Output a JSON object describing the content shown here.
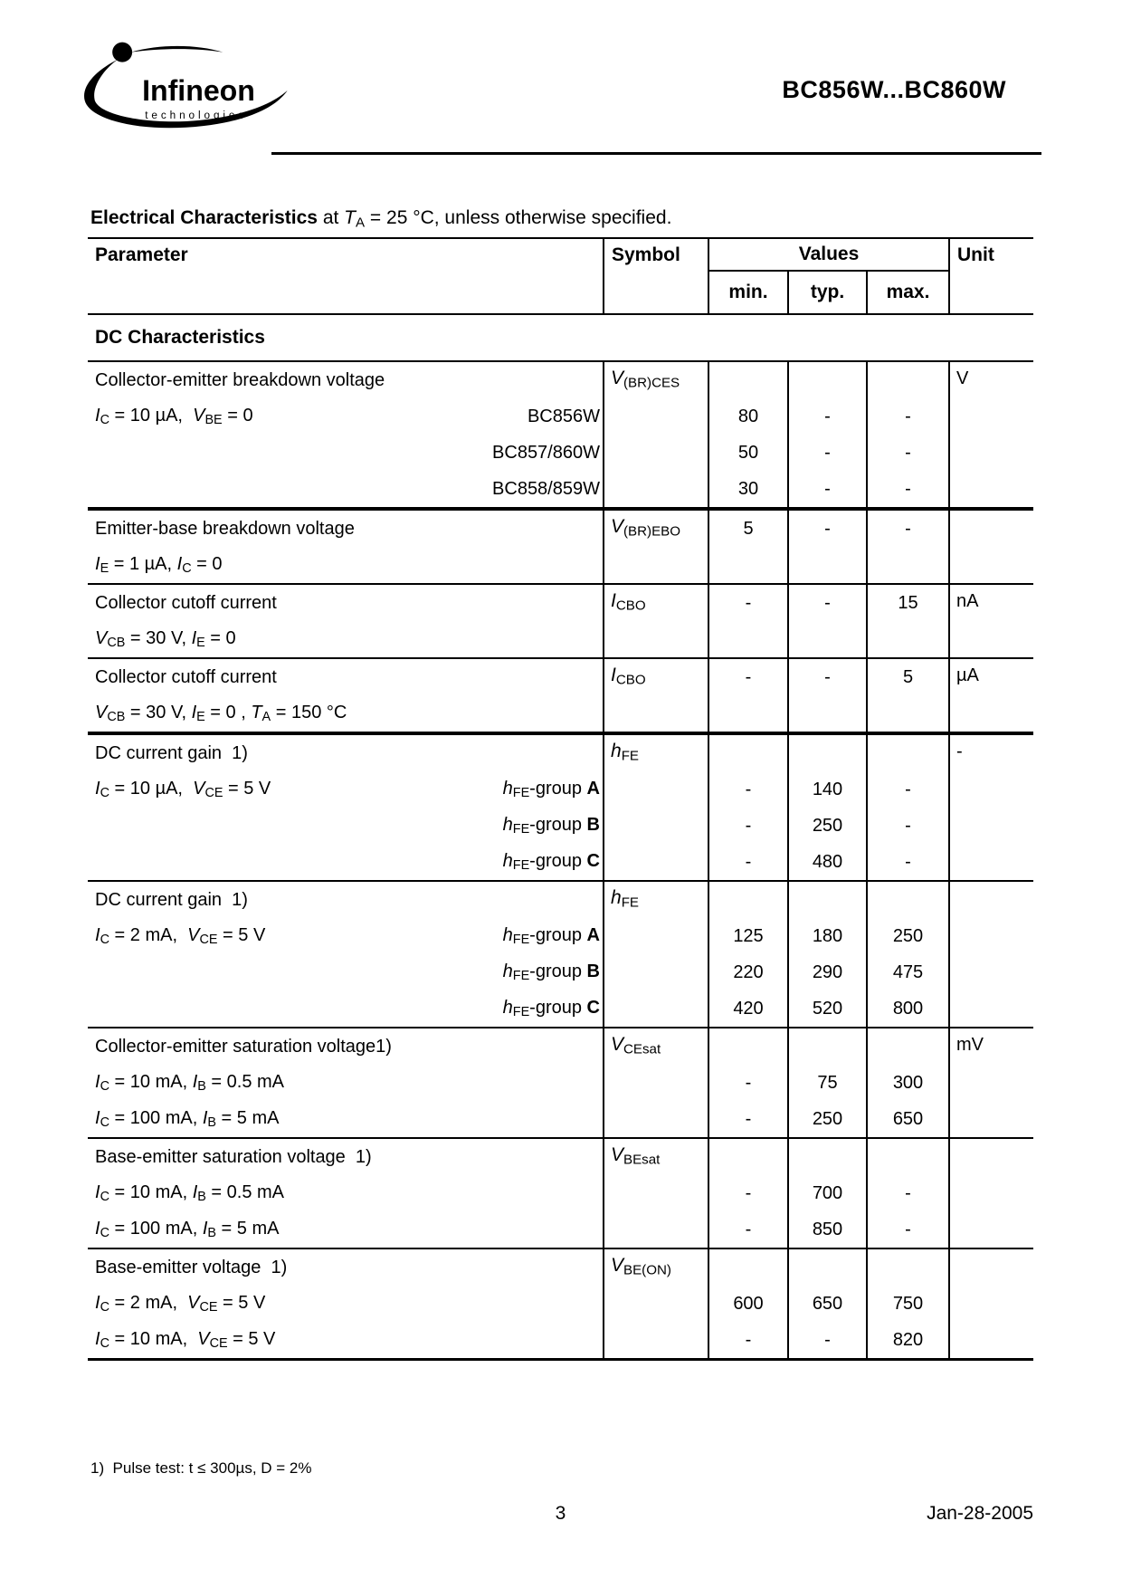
{
  "header": {
    "logo": {
      "brand": "Infineon",
      "sub": "technologies"
    },
    "doc_title": "BC856W...BC860W"
  },
  "intro": {
    "tokens": [
      {
        "t": "Electrical Characteristics",
        "b": true
      },
      {
        "t": " at "
      },
      {
        "t": "T",
        "i": true
      },
      {
        "t": "A",
        "s": true
      },
      {
        "t": " = 25 °C, unless otherwise specified."
      }
    ]
  },
  "table": {
    "columns": {
      "parameter": "Parameter",
      "symbol": "Symbol",
      "values": "Values",
      "unit": "Unit",
      "min": "min.",
      "typ": "typ.",
      "max": "max."
    },
    "section": "DC Characteristics",
    "blocks": [
      {
        "name": "collector-emitter-breakdown-voltage",
        "border_top": "none",
        "symbol": [
          {
            "t": "V",
            "i": true
          },
          {
            "t": "(BR)CES",
            "s": true
          }
        ],
        "unit": "V",
        "rows": [
          {
            "left": [
              {
                "t": "Collector-emitter breakdown voltage"
              }
            ],
            "min": "",
            "typ": "",
            "max": ""
          },
          {
            "left": [
              {
                "t": "I",
                "i": true
              },
              {
                "t": "C",
                "s": true
              },
              {
                "t": " = 10 µA,  "
              },
              {
                "t": "V",
                "i": true
              },
              {
                "t": "BE",
                "s": true
              },
              {
                "t": " = 0"
              }
            ],
            "right": [
              {
                "t": "BC856W"
              }
            ],
            "min": "80",
            "typ": "-",
            "max": "-"
          },
          {
            "right": [
              {
                "t": "BC857/860W"
              }
            ],
            "min": "50",
            "typ": "-",
            "max": "-"
          },
          {
            "right": [
              {
                "t": "BC858/859W"
              }
            ],
            "min": "30",
            "typ": "-",
            "max": "-"
          }
        ]
      },
      {
        "name": "emitter-base-breakdown-voltage",
        "border_top": "thick",
        "symbol": [
          {
            "t": "V",
            "i": true
          },
          {
            "t": "(BR)EBO",
            "s": true
          }
        ],
        "unit": "",
        "rows": [
          {
            "left": [
              {
                "t": "Emitter-base breakdown voltage"
              }
            ],
            "min": "5",
            "typ": "-",
            "max": "-"
          },
          {
            "left": [
              {
                "t": "I",
                "i": true
              },
              {
                "t": "E",
                "s": true
              },
              {
                "t": " = 1 µA, "
              },
              {
                "t": "I",
                "i": true
              },
              {
                "t": "C",
                "s": true
              },
              {
                "t": " = 0"
              }
            ],
            "min": "",
            "typ": "",
            "max": ""
          }
        ]
      },
      {
        "name": "collector-cutoff-current-25c",
        "border_top": "normal",
        "symbol": [
          {
            "t": "I",
            "i": true
          },
          {
            "t": "CBO",
            "s": true
          }
        ],
        "unit": "nA",
        "rows": [
          {
            "left": [
              {
                "t": "Collector cutoff current"
              }
            ],
            "min": "-",
            "typ": "-",
            "max": "15"
          },
          {
            "left": [
              {
                "t": "V",
                "i": true
              },
              {
                "t": "CB",
                "s": true
              },
              {
                "t": " = 30 V, "
              },
              {
                "t": "I",
                "i": true
              },
              {
                "t": "E",
                "s": true
              },
              {
                "t": " = 0"
              }
            ],
            "min": "",
            "typ": "",
            "max": ""
          }
        ]
      },
      {
        "name": "collector-cutoff-current-150c",
        "border_top": "normal",
        "symbol": [
          {
            "t": "I",
            "i": true
          },
          {
            "t": "CBO",
            "s": true
          }
        ],
        "unit": "µA",
        "rows": [
          {
            "left": [
              {
                "t": "Collector cutoff current"
              }
            ],
            "min": "-",
            "typ": "-",
            "max": "5"
          },
          {
            "left": [
              {
                "t": "V",
                "i": true
              },
              {
                "t": "CB",
                "s": true
              },
              {
                "t": " = 30 V, "
              },
              {
                "t": "I",
                "i": true
              },
              {
                "t": "E",
                "s": true
              },
              {
                "t": " = 0 , "
              },
              {
                "t": "T",
                "i": true
              },
              {
                "t": "A",
                "s": true
              },
              {
                "t": " = 150 °C"
              }
            ],
            "min": "",
            "typ": "",
            "max": ""
          }
        ]
      },
      {
        "name": "dc-current-gain-10ua",
        "border_top": "thick",
        "symbol": [
          {
            "t": "h",
            "i": true
          },
          {
            "t": "FE",
            "s": true
          }
        ],
        "unit": "-",
        "rows": [
          {
            "left": [
              {
                "t": "DC current gain  1)"
              }
            ],
            "min": "",
            "typ": "",
            "max": ""
          },
          {
            "left": [
              {
                "t": "I",
                "i": true
              },
              {
                "t": "C",
                "s": true
              },
              {
                "t": " = 10 µA,  "
              },
              {
                "t": "V",
                "i": true
              },
              {
                "t": "CE",
                "s": true
              },
              {
                "t": " = 5 V"
              }
            ],
            "right": [
              {
                "t": "h",
                "i": true
              },
              {
                "t": "FE",
                "s": true
              },
              {
                "t": "-group "
              },
              {
                "t": "A",
                "b": true
              }
            ],
            "min": "-",
            "typ": "140",
            "max": "-"
          },
          {
            "right": [
              {
                "t": "h",
                "i": true
              },
              {
                "t": "FE",
                "s": true
              },
              {
                "t": "-group "
              },
              {
                "t": "B",
                "b": true
              }
            ],
            "min": "-",
            "typ": "250",
            "max": "-"
          },
          {
            "right": [
              {
                "t": "h",
                "i": true
              },
              {
                "t": "FE",
                "s": true
              },
              {
                "t": "-group "
              },
              {
                "t": "C",
                "b": true
              }
            ],
            "min": "-",
            "typ": "480",
            "max": "-"
          }
        ]
      },
      {
        "name": "dc-current-gain-2ma",
        "border_top": "normal",
        "symbol": [
          {
            "t": "h",
            "i": true
          },
          {
            "t": "FE",
            "s": true
          }
        ],
        "unit": "",
        "rows": [
          {
            "left": [
              {
                "t": "DC current gain  1)"
              }
            ],
            "min": "",
            "typ": "",
            "max": ""
          },
          {
            "left": [
              {
                "t": "I",
                "i": true
              },
              {
                "t": "C",
                "s": true
              },
              {
                "t": " = 2 mA,  "
              },
              {
                "t": "V",
                "i": true
              },
              {
                "t": "CE",
                "s": true
              },
              {
                "t": " = 5 V"
              }
            ],
            "right": [
              {
                "t": "h",
                "i": true
              },
              {
                "t": "FE",
                "s": true
              },
              {
                "t": "-group "
              },
              {
                "t": "A",
                "b": true
              }
            ],
            "min": "125",
            "typ": "180",
            "max": "250"
          },
          {
            "right": [
              {
                "t": "h",
                "i": true
              },
              {
                "t": "FE",
                "s": true
              },
              {
                "t": "-group "
              },
              {
                "t": "B",
                "b": true
              }
            ],
            "min": "220",
            "typ": "290",
            "max": "475"
          },
          {
            "right": [
              {
                "t": "h",
                "i": true
              },
              {
                "t": "FE",
                "s": true
              },
              {
                "t": "-group "
              },
              {
                "t": "C",
                "b": true
              }
            ],
            "min": "420",
            "typ": "520",
            "max": "800"
          }
        ]
      },
      {
        "name": "collector-emitter-saturation-voltage",
        "border_top": "normal",
        "symbol": [
          {
            "t": "V",
            "i": true
          },
          {
            "t": "CEsat",
            "s": true
          }
        ],
        "unit": "mV",
        "rows": [
          {
            "left": [
              {
                "t": "Collector-emitter saturation voltage1)"
              }
            ],
            "min": "",
            "typ": "",
            "max": ""
          },
          {
            "left": [
              {
                "t": "I",
                "i": true
              },
              {
                "t": "C",
                "s": true
              },
              {
                "t": " = 10 mA, "
              },
              {
                "t": "I",
                "i": true
              },
              {
                "t": "B",
                "s": true
              },
              {
                "t": " = 0.5 mA"
              }
            ],
            "min": "-",
            "typ": "75",
            "max": "300"
          },
          {
            "left": [
              {
                "t": "I",
                "i": true
              },
              {
                "t": "C",
                "s": true
              },
              {
                "t": " = 100 mA, "
              },
              {
                "t": "I",
                "i": true
              },
              {
                "t": "B",
                "s": true
              },
              {
                "t": " = 5 mA"
              }
            ],
            "min": "-",
            "typ": "250",
            "max": "650"
          }
        ]
      },
      {
        "name": "base-emitter-saturation-voltage",
        "border_top": "normal",
        "symbol": [
          {
            "t": "V",
            "i": true
          },
          {
            "t": "BEsat",
            "s": true
          }
        ],
        "unit": "",
        "rows": [
          {
            "left": [
              {
                "t": "Base-emitter saturation voltage  1)"
              }
            ],
            "min": "",
            "typ": "",
            "max": ""
          },
          {
            "left": [
              {
                "t": "I",
                "i": true
              },
              {
                "t": "C",
                "s": true
              },
              {
                "t": " = 10 mA, "
              },
              {
                "t": "I",
                "i": true
              },
              {
                "t": "B",
                "s": true
              },
              {
                "t": " = 0.5 mA"
              }
            ],
            "min": "-",
            "typ": "700",
            "max": "-"
          },
          {
            "left": [
              {
                "t": "I",
                "i": true
              },
              {
                "t": "C",
                "s": true
              },
              {
                "t": " = 100 mA, "
              },
              {
                "t": "I",
                "i": true
              },
              {
                "t": "B",
                "s": true
              },
              {
                "t": " = 5 mA"
              }
            ],
            "min": "-",
            "typ": "850",
            "max": "-"
          }
        ]
      },
      {
        "name": "base-emitter-voltage",
        "border_top": "normal",
        "symbol": [
          {
            "t": "V",
            "i": true
          },
          {
            "t": "BE(ON)",
            "s": true
          }
        ],
        "unit": "",
        "rows": [
          {
            "left": [
              {
                "t": "Base-emitter voltage  1)"
              }
            ],
            "min": "",
            "typ": "",
            "max": ""
          },
          {
            "left": [
              {
                "t": "I",
                "i": true
              },
              {
                "t": "C",
                "s": true
              },
              {
                "t": " = 2 mA,  "
              },
              {
                "t": "V",
                "i": true
              },
              {
                "t": "CE",
                "s": true
              },
              {
                "t": " = 5 V"
              }
            ],
            "min": "600",
            "typ": "650",
            "max": "750"
          },
          {
            "left": [
              {
                "t": "I",
                "i": true
              },
              {
                "t": "C",
                "s": true
              },
              {
                "t": " = 10 mA,  "
              },
              {
                "t": "V",
                "i": true
              },
              {
                "t": "CE",
                "s": true
              },
              {
                "t": " = 5 V"
              }
            ],
            "min": "-",
            "typ": "-",
            "max": "820"
          }
        ]
      }
    ]
  },
  "footnote": {
    "tokens": [
      {
        "t": "1)  Pulse test: t ≤ 300µs, D = 2%"
      }
    ]
  },
  "footer": {
    "page": "3",
    "date": "Jan-28-2005"
  }
}
